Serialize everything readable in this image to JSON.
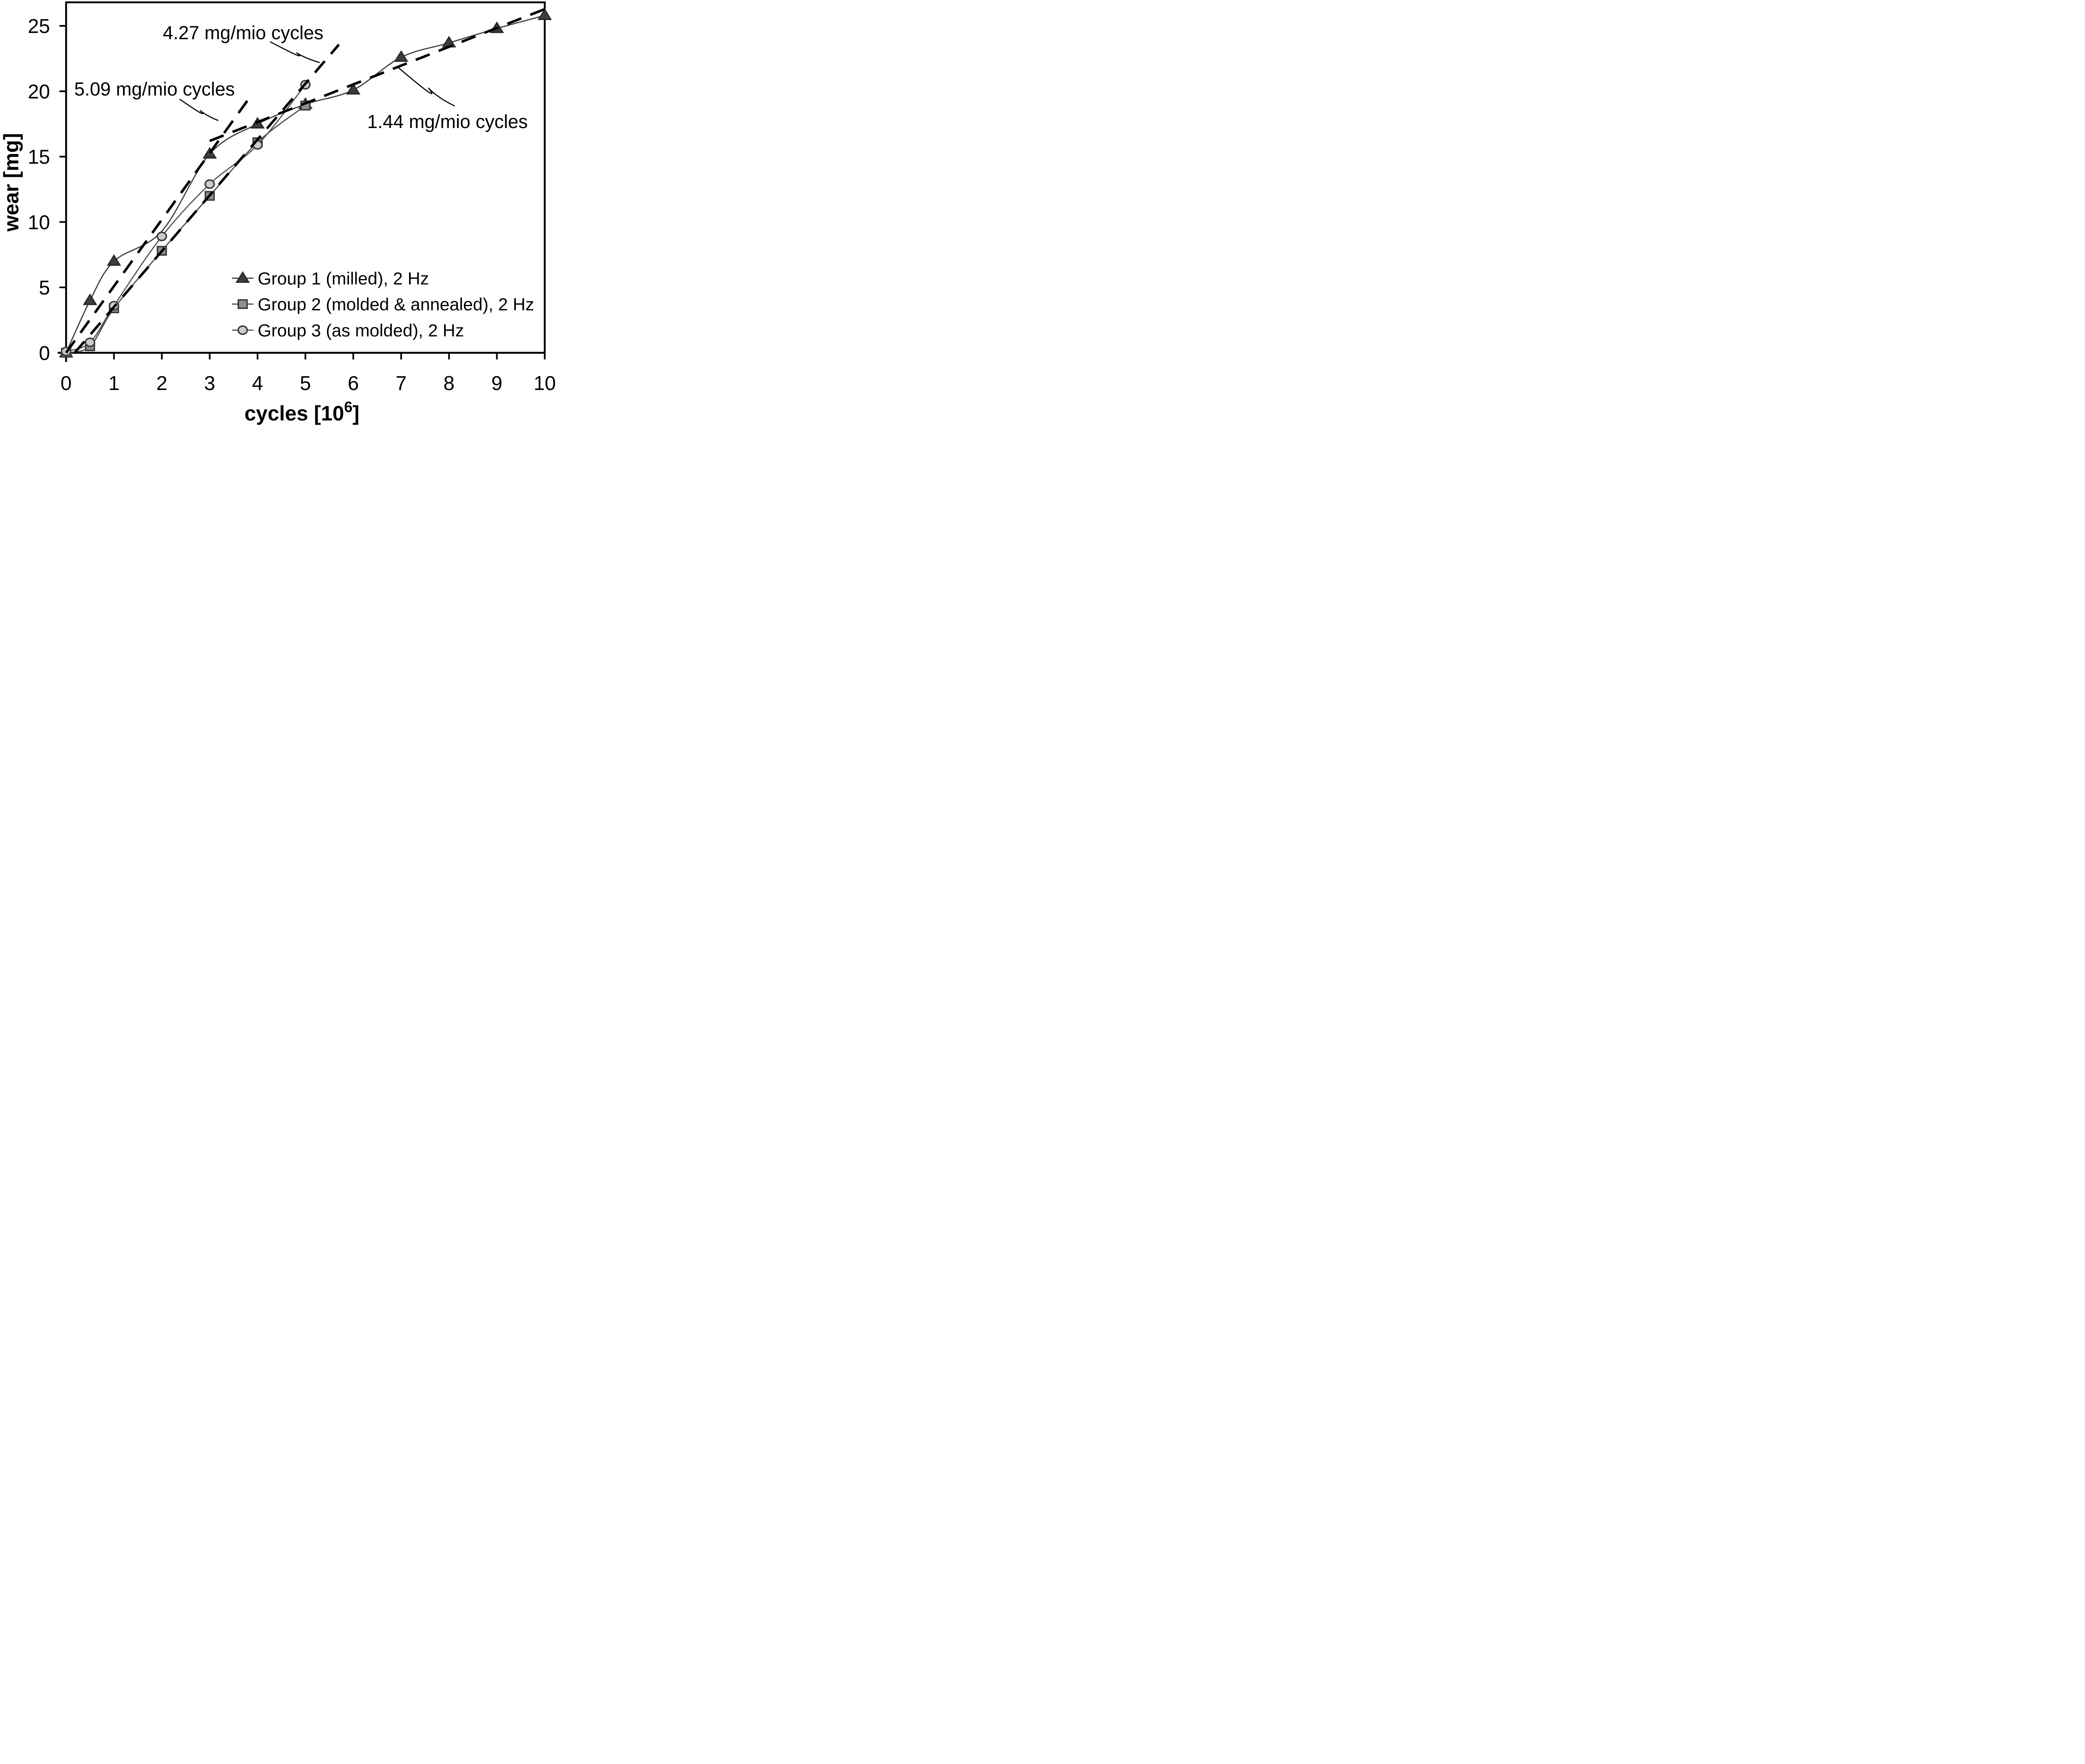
{
  "chart_data": {
    "type": "line",
    "xlabel": {
      "prefix": "cycles [10",
      "sup": "6",
      "suffix": "]"
    },
    "ylabel": "wear [mg]",
    "xlim": [
      0,
      10
    ],
    "ylim": [
      0,
      26.8
    ],
    "x_ticks": [
      "0",
      "1",
      "2",
      "3",
      "4",
      "5",
      "6",
      "7",
      "8",
      "9",
      "10"
    ],
    "y_ticks": [
      "0",
      "5",
      "10",
      "15",
      "20",
      "25"
    ],
    "grid": false,
    "legend_position": "inside lower right",
    "series": [
      {
        "name": "Group 1 (milled), 2 Hz",
        "marker": "triangle",
        "marker_fill": "#3d3d3d",
        "marker_stroke": "#262626",
        "line_color": "#3d3d3d",
        "x": [
          0,
          0.5,
          1,
          3,
          4,
          5,
          6,
          7,
          8,
          9,
          10
        ],
        "y": [
          0,
          4.0,
          7.0,
          15.2,
          17.5,
          19.0,
          20.1,
          22.6,
          23.7,
          24.8,
          25.8
        ],
        "curve_shape_points": [
          {
            "x": 2,
            "y": 9.3
          }
        ]
      },
      {
        "name": "Group 2 (molded & annealed), 2 Hz",
        "marker": "square",
        "marker_fill": "#8f8f8f",
        "marker_stroke": "#3a3a3a",
        "line_color": "#4a4a4a",
        "x": [
          0,
          0.5,
          1,
          2,
          3,
          4,
          5
        ],
        "y": [
          0,
          0.5,
          3.4,
          7.8,
          12.0,
          16.1,
          18.9
        ],
        "curve_shape_points": []
      },
      {
        "name": "Group 3 (as molded), 2 Hz",
        "marker": "circle",
        "marker_fill": "#cccccc",
        "marker_stroke": "#3a3a3a",
        "line_color": "#555555",
        "x": [
          0,
          0.5,
          1,
          2,
          3,
          4,
          5
        ],
        "y": [
          0.1,
          0.8,
          3.6,
          8.9,
          12.9,
          15.9,
          20.5
        ],
        "curve_shape_points": []
      }
    ],
    "trend_lines": [
      {
        "label": "5.09 mg/mio cycles",
        "slope_mg_per_mio_cycles": 5.09,
        "x1": 0,
        "y1": 0,
        "x2": 3.88,
        "y2": 19.75,
        "color": "#000000"
      },
      {
        "label": "4.27 mg/mio cycles",
        "slope_mg_per_mio_cycles": 4.27,
        "x1": 0.18,
        "y1": 0,
        "x2": 5.7,
        "y2": 23.57,
        "color": "#000000"
      },
      {
        "label": "1.44 mg/mio cycles",
        "slope_mg_per_mio_cycles": 1.44,
        "x1": 3.0,
        "y1": 16.2,
        "x2": 10.0,
        "y2": 26.28,
        "color": "#000000"
      }
    ],
    "annotations": [
      {
        "label": "5.09 mg/mio cycles",
        "text_x": 0.17,
        "text_y": 20.85,
        "leader_from_x": 2.37,
        "leader_from_y": 19.4,
        "leader_to_x": 3.18,
        "leader_to_y": 17.76
      },
      {
        "label": "4.27 mg/mio cycles",
        "text_x": 2.02,
        "text_y": 25.16,
        "leader_from_x": 4.26,
        "leader_from_y": 23.79,
        "leader_to_x": 5.3,
        "leader_to_y": 22.19
      },
      {
        "label": "1.44 mg/mio cycles",
        "text_x": 6.29,
        "text_y": 18.36,
        "leader_from_x": 6.94,
        "leader_from_y": 21.81,
        "leader_to_x": 8.12,
        "leader_to_y": 18.87
      }
    ]
  }
}
